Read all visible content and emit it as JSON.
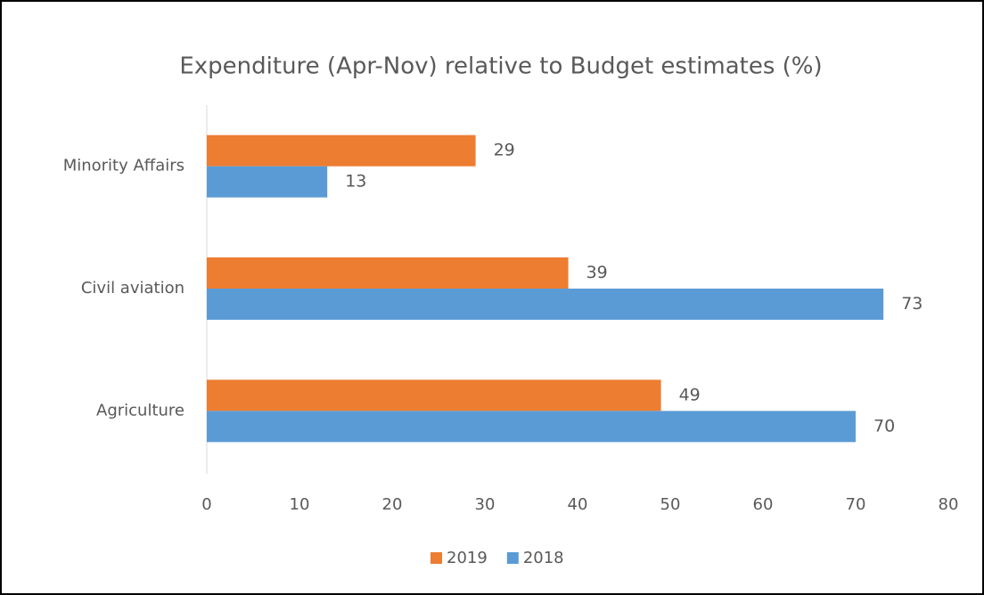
{
  "chart_data": {
    "type": "hbar",
    "title": "Expenditure (Apr-Nov)  relative to Budget estimates (%)",
    "categories": [
      "Minority Affairs",
      "Civil aviation",
      "Agriculture"
    ],
    "series": [
      {
        "name": "2019",
        "color": "#ed7d31",
        "values": [
          29,
          39,
          49
        ]
      },
      {
        "name": "2018",
        "color": "#5b9bd5",
        "values": [
          13,
          73,
          70
        ]
      }
    ],
    "xlim": [
      0,
      80
    ],
    "xticks": [
      0,
      10,
      20,
      30,
      40,
      50,
      60,
      70,
      80
    ],
    "grid": false,
    "legend": "bottom"
  }
}
